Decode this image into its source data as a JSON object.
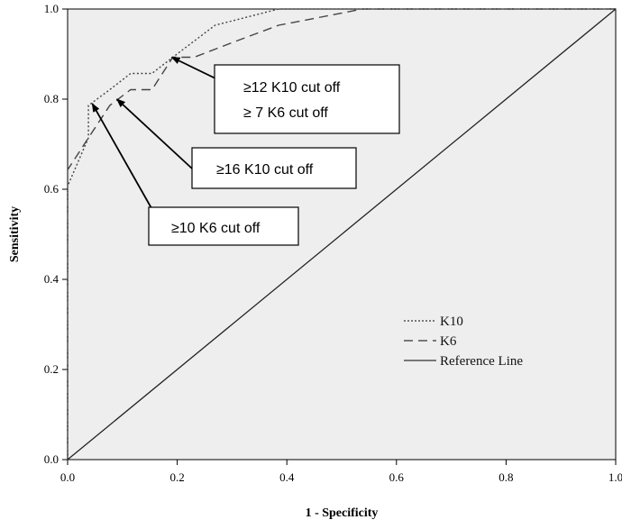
{
  "chart_data": {
    "type": "line",
    "xlabel": "1 - Specificity",
    "ylabel": "Sensitivity",
    "xlim": [
      0,
      1
    ],
    "ylim": [
      0,
      1
    ],
    "x_ticks": [
      "0.0",
      "0.2",
      "0.4",
      "0.6",
      "0.8",
      "1.0"
    ],
    "y_ticks": [
      "0.0",
      "0.2",
      "0.4",
      "0.6",
      "0.8",
      "1.0"
    ],
    "grid": false,
    "plot_background": "#eeeeee",
    "legend_position": "lower-right",
    "series": [
      {
        "name": "K10",
        "style": "dotted",
        "x": [
          0.0,
          0.0,
          0.038,
          0.038,
          0.077,
          0.115,
          0.154,
          0.192,
          0.269,
          0.385,
          1.0
        ],
        "y": [
          0.0,
          0.607,
          0.714,
          0.786,
          0.821,
          0.857,
          0.857,
          0.893,
          0.964,
          1.0,
          1.0
        ]
      },
      {
        "name": "K6",
        "style": "dashed",
        "x": [
          0.0,
          0.0,
          0.038,
          0.077,
          0.115,
          0.154,
          0.192,
          0.231,
          0.308,
          0.385,
          0.462,
          0.538,
          1.0
        ],
        "y": [
          0.0,
          0.643,
          0.714,
          0.786,
          0.821,
          0.821,
          0.893,
          0.893,
          0.929,
          0.964,
          0.982,
          1.0,
          1.0
        ]
      },
      {
        "name": "Reference Line",
        "style": "solid",
        "x": [
          0,
          1
        ],
        "y": [
          0,
          1
        ]
      }
    ],
    "annotations": [
      {
        "lines": [
          "≥12 K10 cut off",
          "≥ 7 K6 cut off"
        ],
        "point": [
          0.19,
          0.893
        ]
      },
      {
        "lines": [
          "≥16 K10 cut off"
        ],
        "point": [
          0.09,
          0.8
        ]
      },
      {
        "lines": [
          "≥10 K6 cut off"
        ],
        "point": [
          0.045,
          0.79
        ]
      }
    ]
  }
}
